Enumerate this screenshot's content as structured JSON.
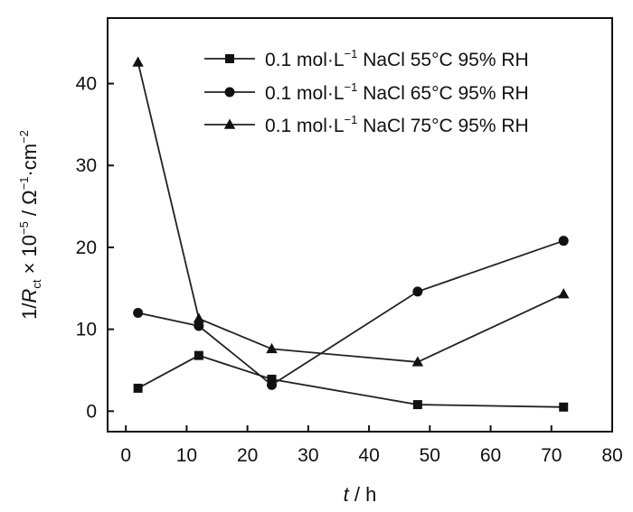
{
  "chart_data": {
    "type": "line",
    "xlabel": "t / h",
    "ylabel": "1/Rct × 10−5 / Ω−1·cm−2",
    "xlim": [
      -3,
      80
    ],
    "ylim": [
      -2.5,
      48
    ],
    "xticks": [
      "0",
      "10",
      "20",
      "30",
      "40",
      "50",
      "60",
      "70",
      "80"
    ],
    "yticks": [
      "0",
      "10",
      "20",
      "30",
      "40"
    ],
    "legend_position": "top-right",
    "grid": false,
    "series": [
      {
        "name": "0.1 mol·L−1 NaCl 55°C 95% RH",
        "marker": "square",
        "x": [
          2,
          12,
          24,
          48,
          72
        ],
        "y": [
          2.8,
          6.8,
          3.9,
          0.8,
          0.5
        ]
      },
      {
        "name": "0.1 mol·L−1 NaCl 65°C 95% RH",
        "marker": "circle",
        "x": [
          2,
          12,
          24,
          48,
          72
        ],
        "y": [
          12.0,
          10.4,
          3.2,
          14.6,
          20.8
        ]
      },
      {
        "name": "0.1 mol·L−1 NaCl 75°C 95% RH",
        "marker": "triangle",
        "x": [
          2,
          12,
          24,
          48,
          72
        ],
        "y": [
          42.6,
          11.3,
          7.6,
          6.0,
          14.3
        ]
      }
    ]
  }
}
